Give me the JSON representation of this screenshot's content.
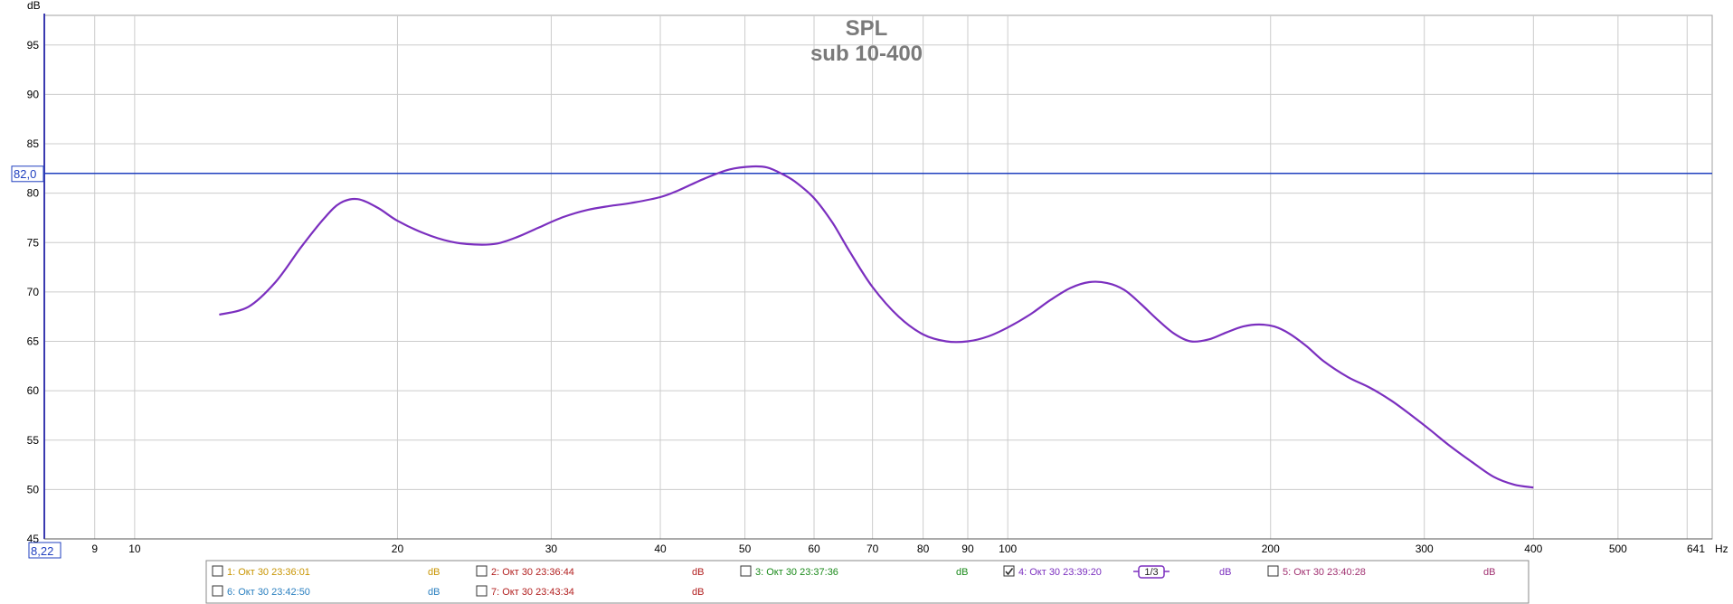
{
  "chart_data": {
    "type": "line",
    "title": "SPL",
    "subtitle": "sub 10-400",
    "ylabel": "dB",
    "xlabel": "Hz",
    "x_scale": "log",
    "xlim": [
      7.88,
      641
    ],
    "ylim": [
      45,
      98
    ],
    "x_ticks": [
      9,
      10,
      20,
      30,
      40,
      50,
      60,
      70,
      80,
      90,
      100,
      200,
      300,
      400,
      500
    ],
    "x_tick_labels": [
      "9",
      "10",
      "20",
      "30",
      "40",
      "50",
      "60",
      "70",
      "80",
      "90",
      "100",
      "200",
      "300",
      "400",
      "500"
    ],
    "x_end_label": "641",
    "x_start_value": "8,22",
    "y_ticks": [
      45,
      50,
      55,
      60,
      65,
      70,
      75,
      80,
      85,
      90,
      95
    ],
    "cursor_y": 82.0,
    "cursor_label": "82,0",
    "grid": true,
    "series": [
      {
        "name": "4: Окт 30 23:39:20",
        "color": "#7b2fbf",
        "x": [
          12.5,
          13.5,
          14.5,
          15.5,
          16.5,
          17.2,
          18,
          19,
          20,
          21.5,
          23,
          24.5,
          26,
          27.5,
          29,
          31,
          33,
          35,
          37,
          40,
          42,
          45,
          48,
          51,
          53,
          55,
          57,
          60,
          63,
          66,
          70,
          75,
          80,
          85,
          90,
          95,
          100,
          106,
          112,
          118,
          124,
          130,
          136,
          142,
          148,
          155,
          162,
          170,
          178,
          186,
          194,
          202,
          210,
          220,
          230,
          245,
          260,
          275,
          290,
          305,
          320,
          340,
          360,
          380,
          400
        ],
        "y": [
          67.7,
          68.5,
          71.0,
          74.5,
          77.5,
          79.0,
          79.4,
          78.5,
          77.2,
          75.9,
          75.1,
          74.8,
          74.9,
          75.6,
          76.5,
          77.6,
          78.3,
          78.7,
          79.0,
          79.6,
          80.3,
          81.5,
          82.4,
          82.7,
          82.6,
          82.0,
          81.2,
          79.5,
          77.0,
          74.0,
          70.5,
          67.5,
          65.7,
          65.0,
          65.0,
          65.5,
          66.4,
          67.7,
          69.2,
          70.4,
          71.0,
          70.9,
          70.2,
          68.8,
          67.3,
          65.8,
          65.0,
          65.2,
          65.9,
          66.5,
          66.7,
          66.5,
          65.8,
          64.5,
          63.0,
          61.4,
          60.3,
          59.0,
          57.5,
          56.0,
          54.5,
          52.8,
          51.3,
          50.5,
          50.2
        ]
      }
    ],
    "legend": [
      {
        "name": "1: Окт 30 23:36:01",
        "unit": "dB",
        "color": "#c89400",
        "checked": false
      },
      {
        "name": "2: Окт 30 23:36:44",
        "unit": "dB",
        "color": "#b22020",
        "checked": false
      },
      {
        "name": "3: Окт 30 23:37:36",
        "unit": "dB",
        "color": "#1a8a1a",
        "checked": false
      },
      {
        "name": "4: Окт 30 23:39:20",
        "unit": "dB",
        "color": "#7b2fbf",
        "checked": true,
        "smoothing": "1/3"
      },
      {
        "name": "5: Окт 30 23:40:28",
        "unit": "dB",
        "color": "#a03070",
        "checked": false
      },
      {
        "name": "6: Окт 30 23:42:50",
        "unit": "dB",
        "color": "#2a7fc0",
        "checked": false
      },
      {
        "name": "7: Окт 30 23:43:34",
        "unit": "dB",
        "color": "#b22020",
        "checked": false
      }
    ],
    "legend_placement": "bottom"
  },
  "colors": {
    "grid": "#cccccc",
    "axis": "#3a3ab0",
    "cursor": "#1f3fbf",
    "title": "#7a7a7a"
  }
}
